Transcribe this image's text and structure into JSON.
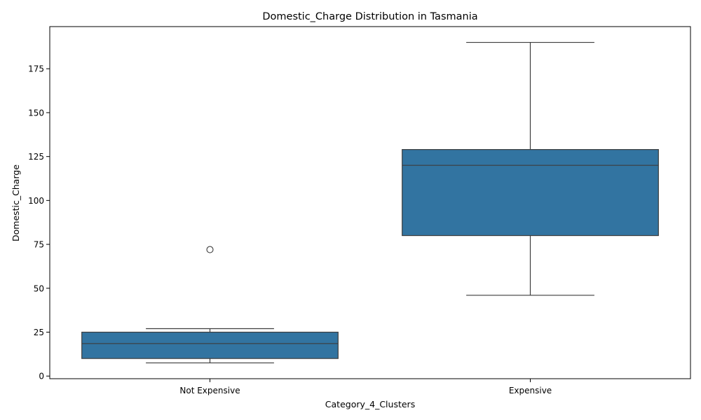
{
  "chart_data": {
    "type": "box",
    "title": "Domestic_Charge Distribution in Tasmania",
    "xlabel": "Category_4_Clusters",
    "ylabel": "Domestic_Charge",
    "ylim": [
      -1.5,
      199
    ],
    "yticks": [
      0,
      25,
      50,
      75,
      100,
      125,
      150,
      175
    ],
    "categories": [
      "Not Expensive",
      "Expensive"
    ],
    "boxes": [
      {
        "category": "Not Expensive",
        "whisker_low": 7.5,
        "q1": 10,
        "median": 18.5,
        "q3": 25,
        "whisker_high": 27,
        "outliers": [
          72
        ]
      },
      {
        "category": "Expensive",
        "whisker_low": 46,
        "q1": 80,
        "median": 120,
        "q3": 129,
        "whisker_high": 190,
        "outliers": []
      }
    ],
    "box_color": "#3274a1",
    "line_color": "#3d3d3d",
    "grid": false
  }
}
